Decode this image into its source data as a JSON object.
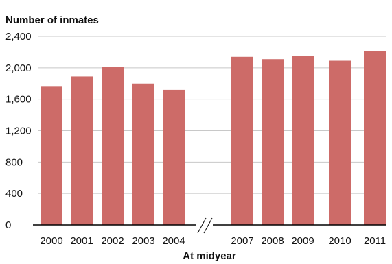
{
  "chart_data": {
    "type": "bar",
    "ylabel": "Number of inmates",
    "xlabel": "At midyear",
    "ylim": [
      0,
      2400
    ],
    "yticks": [
      0,
      400,
      800,
      1200,
      1600,
      2000,
      2400
    ],
    "ytick_labels": [
      "0",
      "400",
      "800",
      "1,200",
      "1,600",
      "2,000",
      "2,400"
    ],
    "grid": "horizontal",
    "axis_break": "between 2004 and 2007",
    "bar_color": "#cd6b68",
    "categories": [
      "2000",
      "2001",
      "2002",
      "2003",
      "2004",
      "2007",
      "2008",
      "2009",
      "2010",
      "2011"
    ],
    "values": [
      1760,
      1890,
      2010,
      1800,
      1720,
      2140,
      2110,
      2150,
      2090,
      2210
    ]
  }
}
